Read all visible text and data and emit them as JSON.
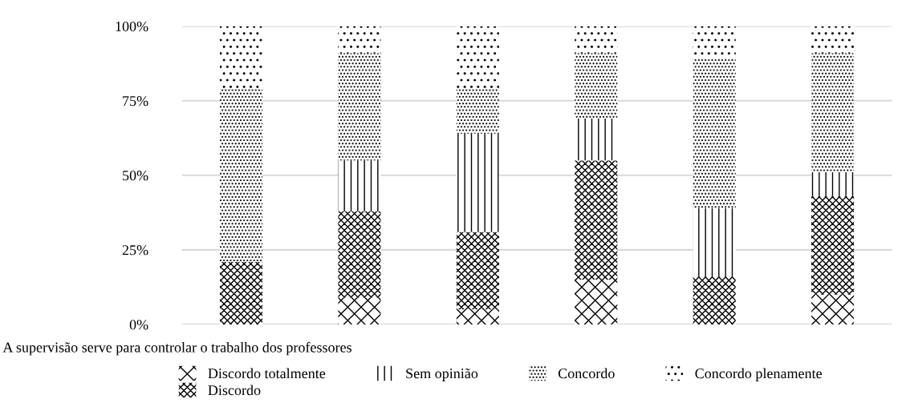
{
  "chart_data": {
    "type": "bar",
    "stacked": true,
    "categories": [
      null,
      null,
      null,
      null,
      null,
      null
    ],
    "xlabel": "A supervisão serve para controlar o trabalho dos professores",
    "series": [
      {
        "name": "Discordo totalmente",
        "color": "#000000",
        "values": [
          0,
          9,
          5,
          15,
          0,
          10
        ]
      },
      {
        "name": "Discordo",
        "color": "#000000",
        "values": [
          21,
          29,
          26,
          40,
          16,
          33
        ]
      },
      {
        "name": "Sem opinião",
        "color": "#000000",
        "values": [
          0,
          17,
          33,
          14,
          23,
          8
        ]
      },
      {
        "name": "Concordo",
        "color": "#000000",
        "values": [
          58,
          36,
          15,
          22,
          50,
          40
        ]
      },
      {
        "name": "Concordo plenamente",
        "color": "#000000",
        "values": [
          21,
          9,
          21,
          9,
          11,
          9
        ]
      }
    ],
    "ylim": [
      0,
      100
    ],
    "yticks": [
      {
        "value": 0,
        "label": "0%"
      },
      {
        "value": 25,
        "label": "25%"
      },
      {
        "value": 50,
        "label": "50%"
      },
      {
        "value": 75,
        "label": "75%"
      },
      {
        "value": 100,
        "label": "100%"
      }
    ],
    "grid": "y",
    "legend": "bottom"
  }
}
